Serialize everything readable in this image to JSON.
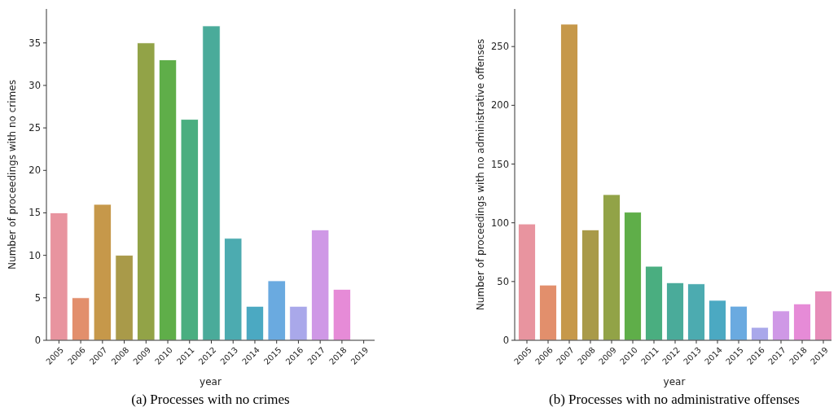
{
  "chart_data": [
    {
      "type": "bar",
      "title": "(a) Processes with no crimes",
      "xlabel": "year",
      "ylabel": "Number of proceedings with no crimes",
      "categories": [
        "2005",
        "2006",
        "2007",
        "2008",
        "2009",
        "2010",
        "2011",
        "2012",
        "2013",
        "2014",
        "2015",
        "2016",
        "2017",
        "2018",
        "2019"
      ],
      "values": [
        15,
        5,
        16,
        10,
        35,
        33,
        26,
        37,
        12,
        4,
        7,
        4,
        13,
        6,
        0
      ],
      "colors": [
        "#e8949f",
        "#e28f6c",
        "#c6984a",
        "#a99a49",
        "#92a347",
        "#5fae49",
        "#4aae80",
        "#4aab9a",
        "#4cabb0",
        "#4ba9c2",
        "#6aaae0",
        "#a9a8ea",
        "#cf98e6",
        "#e68bd7",
        "#e78db9"
      ],
      "ylim": [
        0,
        39
      ],
      "yticks": [
        0,
        5,
        10,
        15,
        20,
        25,
        30,
        35
      ],
      "grid": false
    },
    {
      "type": "bar",
      "title": "(b) Processes with no administrative offenses",
      "xlabel": "year",
      "ylabel": "Number of proceedings with no administrative offenses",
      "categories": [
        "2005",
        "2006",
        "2007",
        "2008",
        "2009",
        "2010",
        "2011",
        "2012",
        "2013",
        "2014",
        "2015",
        "2016",
        "2017",
        "2018",
        "2019"
      ],
      "values": [
        99,
        47,
        269,
        94,
        124,
        109,
        63,
        49,
        48,
        34,
        29,
        11,
        25,
        31,
        42
      ],
      "colors": [
        "#e8949f",
        "#e28f6c",
        "#c6984a",
        "#a99a49",
        "#92a347",
        "#5fae49",
        "#4aae80",
        "#4aab9a",
        "#4cabb0",
        "#4ba9c2",
        "#6aaae0",
        "#a9a8ea",
        "#cf98e6",
        "#e68bd7",
        "#e78db9"
      ],
      "ylim": [
        0,
        282
      ],
      "yticks": [
        0,
        50,
        100,
        150,
        200,
        250
      ],
      "grid": false
    }
  ]
}
